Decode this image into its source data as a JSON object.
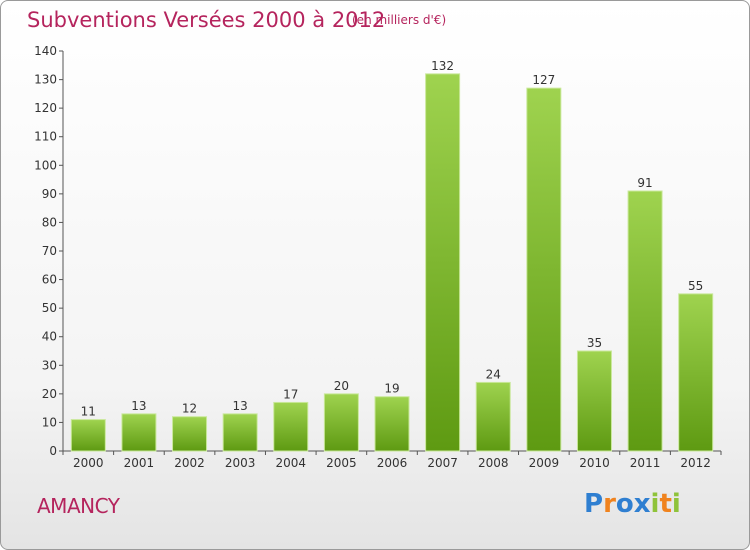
{
  "header": {
    "title": "Subventions Versées 2000 à 2012",
    "subtitle": "(en milliers d'€)"
  },
  "footer": {
    "commune": "AMANCY",
    "logo": {
      "text": "Proxiti",
      "letters": [
        {
          "char": "P",
          "color": "#2f7fd1"
        },
        {
          "char": "r",
          "color": "#f0831e"
        },
        {
          "char": "o",
          "color": "#2f7fd1"
        },
        {
          "char": "x",
          "color": "#2f7fd1"
        },
        {
          "char": "i",
          "color": "#8fc33a"
        },
        {
          "char": "t",
          "color": "#f0831e"
        },
        {
          "char": "i",
          "color": "#8fc33a"
        }
      ]
    }
  },
  "chart_data": {
    "type": "bar",
    "categories": [
      "2000",
      "2001",
      "2002",
      "2003",
      "2004",
      "2005",
      "2006",
      "2007",
      "2008",
      "2009",
      "2010",
      "2011",
      "2012"
    ],
    "values": [
      11,
      13,
      12,
      13,
      17,
      20,
      19,
      132,
      24,
      127,
      35,
      91,
      55
    ],
    "ylim": [
      0,
      140
    ],
    "yticks": [
      0,
      10,
      20,
      30,
      40,
      50,
      60,
      70,
      80,
      90,
      100,
      110,
      120,
      130,
      140
    ],
    "grid": false,
    "bar_color_top": "#9fd34f",
    "bar_color_bottom": "#5e9a12",
    "text_color": "#b5245d"
  }
}
